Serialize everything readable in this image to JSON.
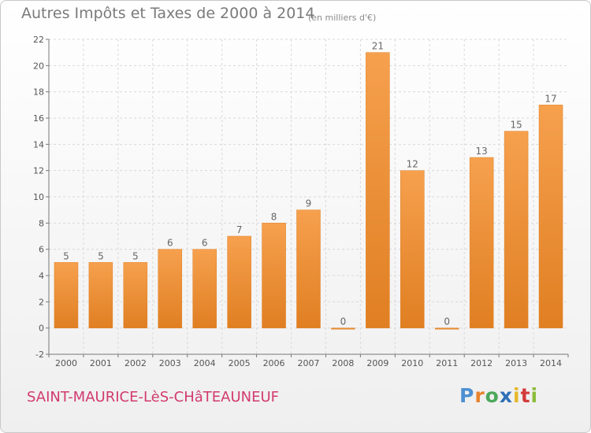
{
  "header": {
    "title": "Autres Impôts et Taxes de 2000 à 2014",
    "subtitle": "(en milliers d'€)"
  },
  "footer": {
    "commune": "SAINT-MAURICE-LèS-CHâTEAUNEUF",
    "logo": [
      "P",
      "r",
      "o",
      "x",
      "i",
      "t",
      "i"
    ]
  },
  "chart_data": {
    "type": "bar",
    "title": "Autres Impôts et Taxes de 2000 à 2014",
    "subtitle": "(en milliers d'€)",
    "categories": [
      "2000",
      "2001",
      "2002",
      "2003",
      "2004",
      "2005",
      "2006",
      "2007",
      "2008",
      "2009",
      "2010",
      "2011",
      "2012",
      "2013",
      "2014"
    ],
    "values": [
      5,
      5,
      5,
      6,
      6,
      7,
      8,
      9,
      0,
      21,
      12,
      0,
      13,
      15,
      17
    ],
    "value_labels": [
      "5",
      "5",
      "5",
      "6",
      "6",
      "7",
      "8",
      "9",
      "0",
      "21",
      "12",
      "0",
      "13",
      "15",
      "17"
    ],
    "xlabel": "",
    "ylabel": "",
    "ylim": [
      -2,
      22
    ],
    "yticks": [
      -2,
      0,
      2,
      4,
      6,
      8,
      10,
      12,
      14,
      16,
      18,
      20,
      22
    ],
    "grid": true,
    "legend": "none",
    "colors": {
      "bar_light": "#f6a04e",
      "bar_dark": "#e07f22",
      "grid": "#d9d9d9",
      "axis": "#777777"
    }
  }
}
